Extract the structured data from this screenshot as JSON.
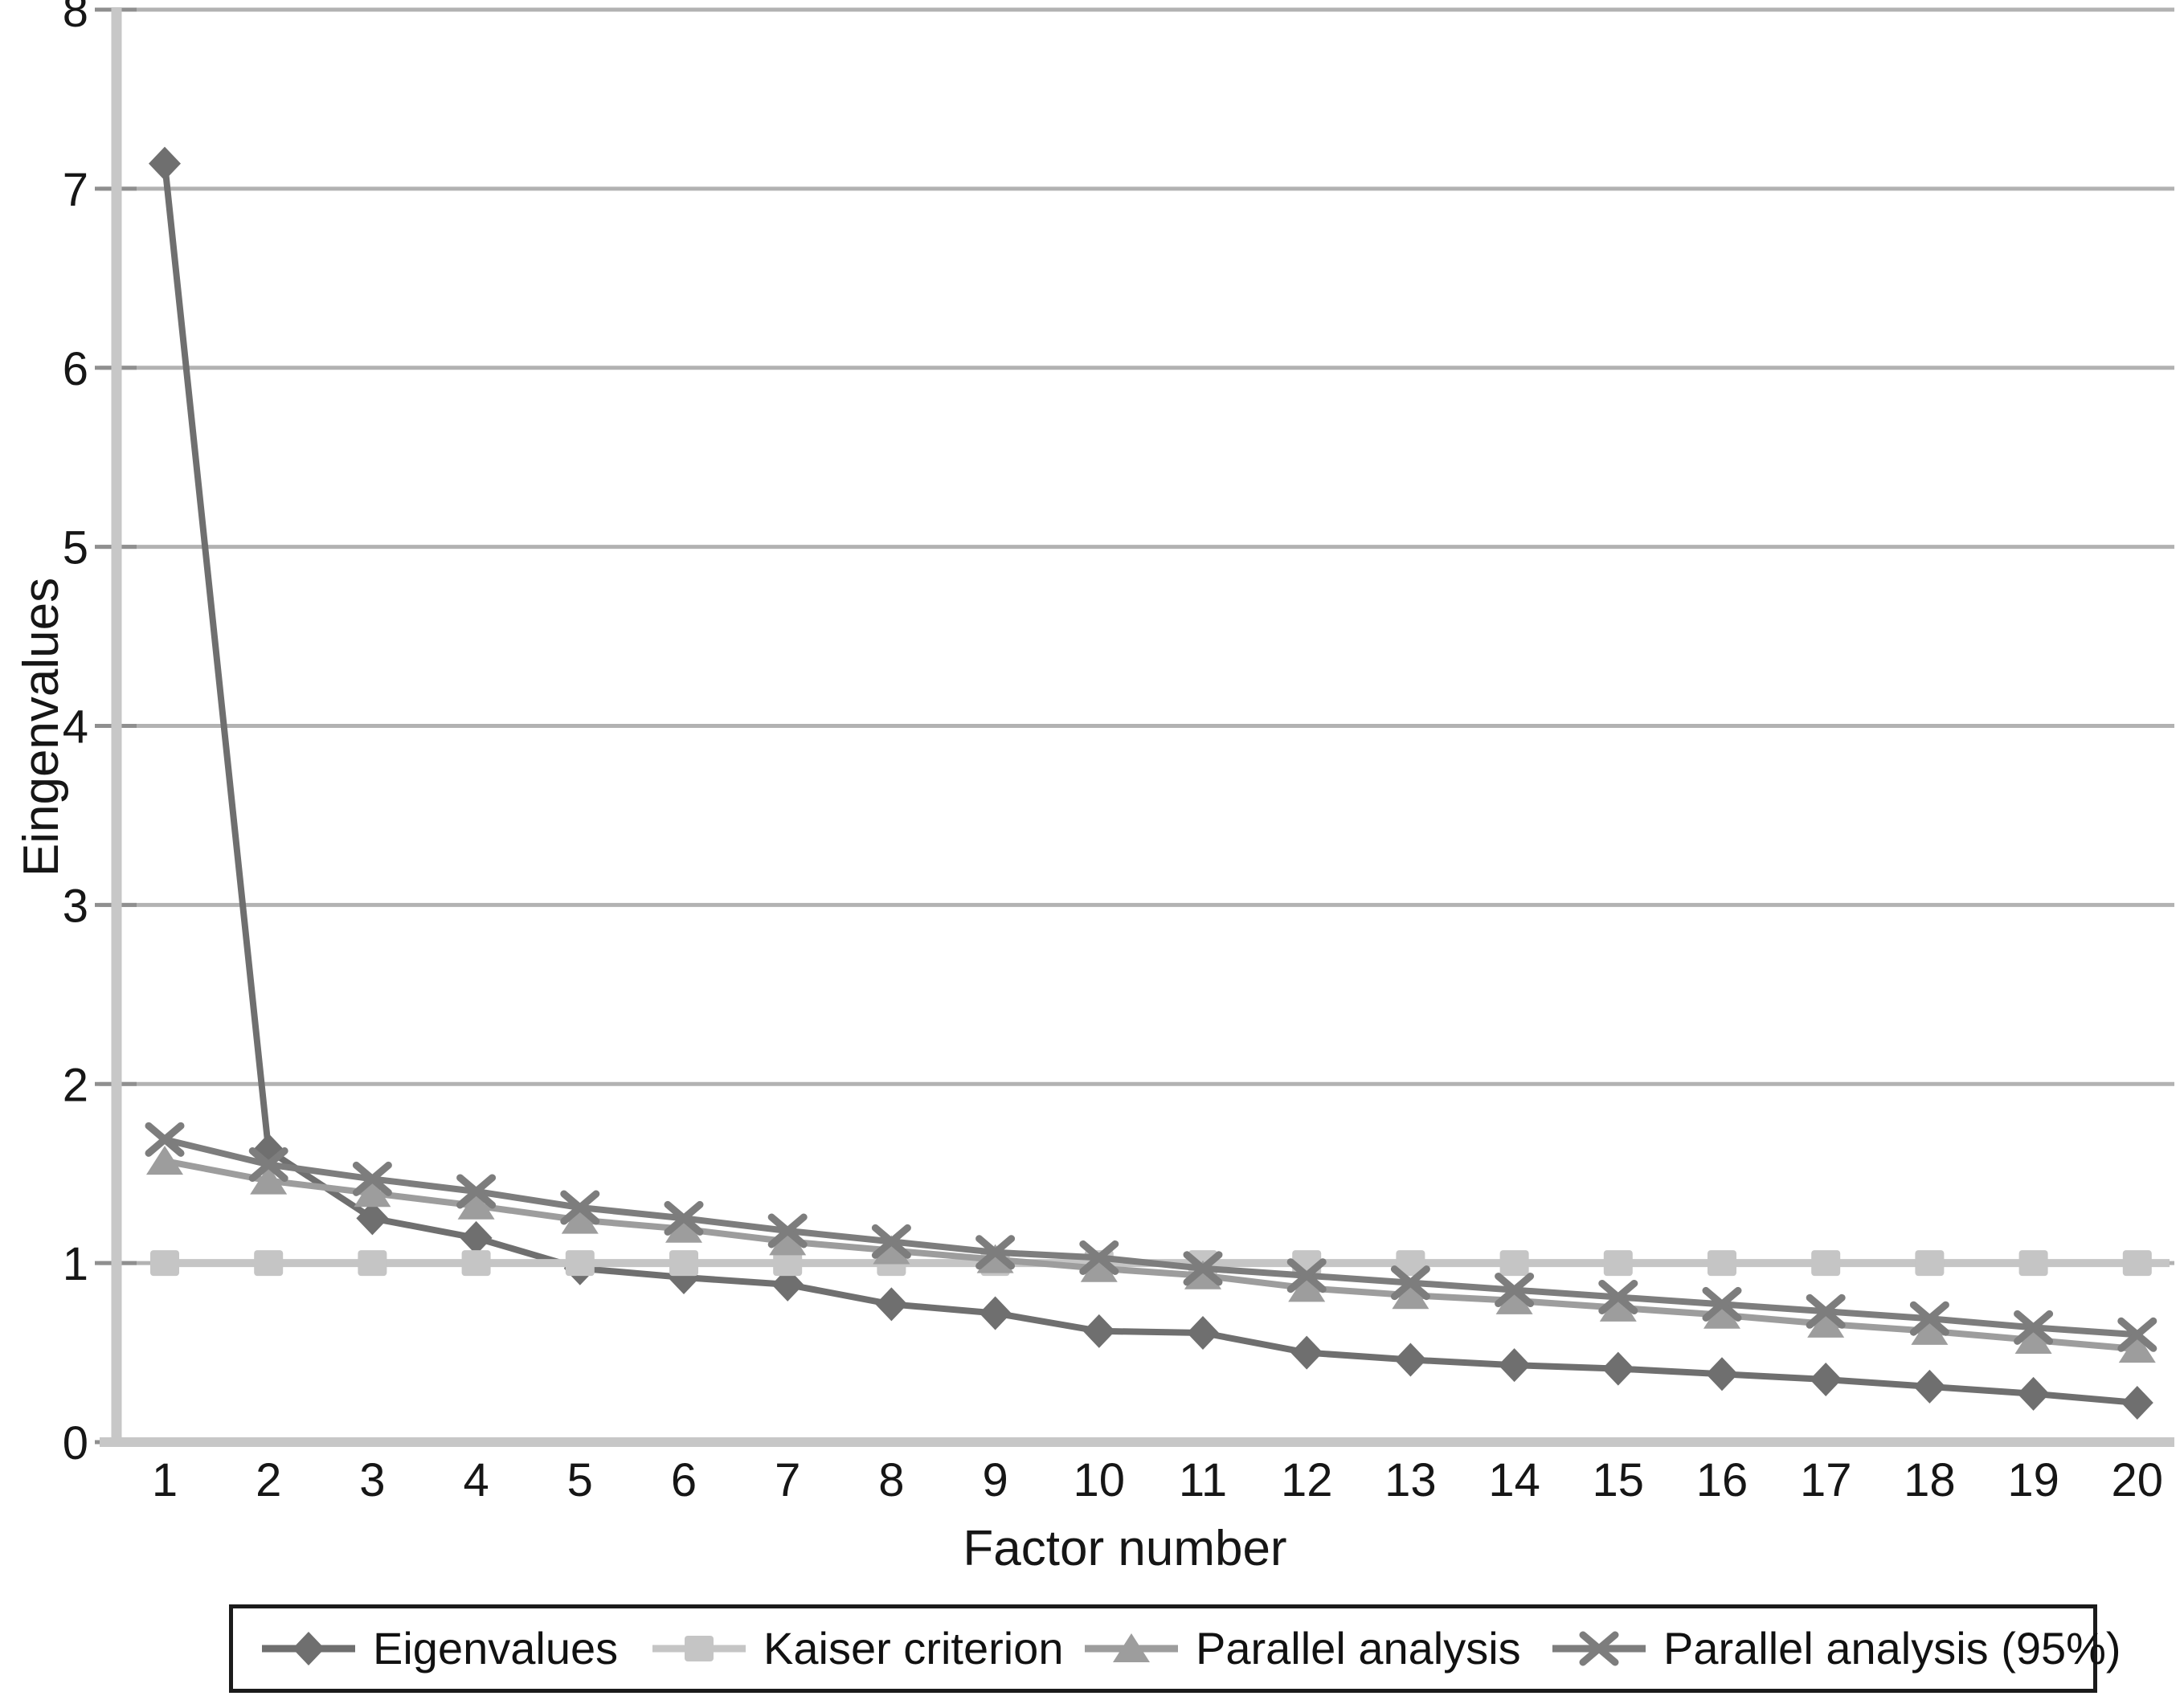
{
  "chart_data": {
    "type": "line",
    "title": "",
    "xlabel": "Factor number",
    "ylabel": "Eingenvalues",
    "x": [
      1,
      2,
      3,
      4,
      5,
      6,
      7,
      8,
      9,
      10,
      11,
      12,
      13,
      14,
      15,
      16,
      17,
      18,
      19,
      20
    ],
    "ylim": [
      0,
      8
    ],
    "yticks": [
      0,
      1,
      2,
      3,
      4,
      5,
      6,
      7,
      8
    ],
    "grid": true,
    "legend_position": "bottom",
    "background_color": "#ffffff",
    "grid_color": "#b2b2b2",
    "axis_color": "#c7c7c7",
    "tick_color": "#8f8f8f",
    "text_color": "#161616",
    "series": [
      {
        "name": "Eigenvalues",
        "marker": "diamond",
        "color": "#6f6f6f",
        "values": [
          7.14,
          1.63,
          1.25,
          1.14,
          0.97,
          0.92,
          0.88,
          0.77,
          0.72,
          0.62,
          0.61,
          0.5,
          0.46,
          0.43,
          0.41,
          0.38,
          0.35,
          0.31,
          0.27,
          0.22
        ]
      },
      {
        "name": "Kaiser criterion",
        "marker": "square",
        "color": "#c5c5c5",
        "values": [
          1.0,
          1.0,
          1.0,
          1.0,
          1.0,
          1.0,
          1.0,
          1.0,
          1.0,
          1.0,
          1.0,
          1.0,
          1.0,
          1.0,
          1.0,
          1.0,
          1.0,
          1.0,
          1.0,
          1.0
        ]
      },
      {
        "name": "Parallel analysis",
        "marker": "triangle",
        "color": "#9d9d9d",
        "values": [
          1.57,
          1.46,
          1.39,
          1.32,
          1.24,
          1.19,
          1.12,
          1.07,
          1.02,
          0.97,
          0.93,
          0.86,
          0.82,
          0.79,
          0.75,
          0.71,
          0.66,
          0.62,
          0.57,
          0.52
        ]
      },
      {
        "name": "Parallel analysis (95%)",
        "marker": "x",
        "color": "#7d7d7d",
        "values": [
          1.69,
          1.55,
          1.47,
          1.4,
          1.31,
          1.25,
          1.18,
          1.12,
          1.06,
          1.03,
          0.97,
          0.93,
          0.89,
          0.85,
          0.81,
          0.77,
          0.73,
          0.69,
          0.64,
          0.6
        ]
      }
    ]
  }
}
